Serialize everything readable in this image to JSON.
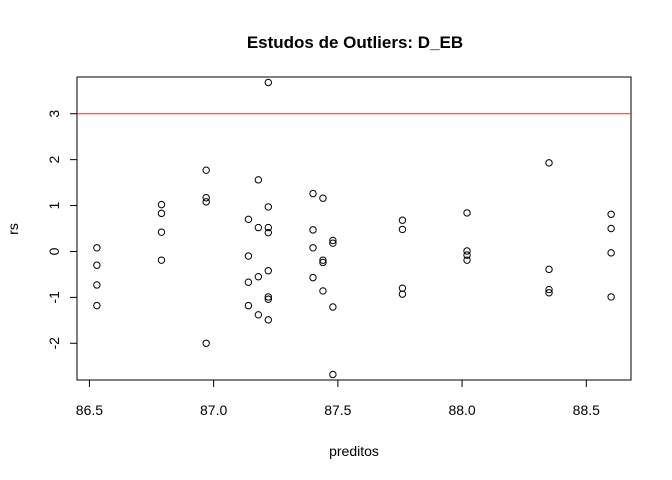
{
  "chart_data": {
    "type": "scatter",
    "title": "Estudos de Outliers:  D_EB",
    "xlabel": "preditos",
    "ylabel": "rs",
    "xlim": [
      86.45,
      88.68
    ],
    "ylim": [
      -2.8,
      3.8
    ],
    "x_ticks": [
      86.5,
      87.0,
      87.5,
      88.0,
      88.5
    ],
    "x_tick_labels": [
      "86.5",
      "87.0",
      "87.5",
      "88.0",
      "88.5"
    ],
    "y_ticks": [
      -2,
      -1,
      0,
      1,
      2,
      3
    ],
    "y_tick_labels": [
      "-2",
      "-1",
      "0",
      "1",
      "2",
      "3"
    ],
    "reference_line": {
      "y": 3,
      "color": "#e8312f"
    },
    "grid": false,
    "marker": "open-circle",
    "points": [
      {
        "x": 86.53,
        "y": 0.08
      },
      {
        "x": 86.53,
        "y": -0.3
      },
      {
        "x": 86.53,
        "y": -0.73
      },
      {
        "x": 86.53,
        "y": -1.18
      },
      {
        "x": 86.79,
        "y": 1.02
      },
      {
        "x": 86.79,
        "y": 0.83
      },
      {
        "x": 86.79,
        "y": 0.42
      },
      {
        "x": 86.79,
        "y": -0.19
      },
      {
        "x": 86.97,
        "y": 1.77
      },
      {
        "x": 86.97,
        "y": 1.17
      },
      {
        "x": 86.97,
        "y": 1.08
      },
      {
        "x": 86.97,
        "y": -2.0
      },
      {
        "x": 87.14,
        "y": 0.7
      },
      {
        "x": 87.14,
        "y": -0.1
      },
      {
        "x": 87.14,
        "y": -0.67
      },
      {
        "x": 87.14,
        "y": -1.18
      },
      {
        "x": 87.18,
        "y": 1.56
      },
      {
        "x": 87.18,
        "y": 0.52
      },
      {
        "x": 87.18,
        "y": -0.55
      },
      {
        "x": 87.18,
        "y": -1.38
      },
      {
        "x": 87.22,
        "y": 3.68
      },
      {
        "x": 87.22,
        "y": 0.97
      },
      {
        "x": 87.22,
        "y": 0.52
      },
      {
        "x": 87.22,
        "y": 0.41
      },
      {
        "x": 87.22,
        "y": -0.42
      },
      {
        "x": 87.22,
        "y": -0.99
      },
      {
        "x": 87.22,
        "y": -1.04
      },
      {
        "x": 87.22,
        "y": -1.49
      },
      {
        "x": 87.4,
        "y": 1.26
      },
      {
        "x": 87.4,
        "y": 0.47
      },
      {
        "x": 87.4,
        "y": 0.08
      },
      {
        "x": 87.4,
        "y": -0.57
      },
      {
        "x": 87.44,
        "y": 1.16
      },
      {
        "x": 87.44,
        "y": -0.19
      },
      {
        "x": 87.44,
        "y": -0.24
      },
      {
        "x": 87.44,
        "y": -0.86
      },
      {
        "x": 87.48,
        "y": 0.24
      },
      {
        "x": 87.48,
        "y": 0.18
      },
      {
        "x": 87.48,
        "y": -1.21
      },
      {
        "x": 87.48,
        "y": -2.68
      },
      {
        "x": 87.76,
        "y": 0.68
      },
      {
        "x": 87.76,
        "y": 0.48
      },
      {
        "x": 87.76,
        "y": -0.8
      },
      {
        "x": 87.76,
        "y": -0.93
      },
      {
        "x": 88.02,
        "y": 0.84
      },
      {
        "x": 88.02,
        "y": 0.01
      },
      {
        "x": 88.02,
        "y": -0.08
      },
      {
        "x": 88.02,
        "y": -0.19
      },
      {
        "x": 88.35,
        "y": 1.93
      },
      {
        "x": 88.35,
        "y": -0.39
      },
      {
        "x": 88.35,
        "y": -0.83
      },
      {
        "x": 88.35,
        "y": -0.9
      },
      {
        "x": 88.6,
        "y": 0.81
      },
      {
        "x": 88.6,
        "y": 0.5
      },
      {
        "x": 88.6,
        "y": -0.03
      },
      {
        "x": 88.6,
        "y": -0.99
      }
    ]
  }
}
